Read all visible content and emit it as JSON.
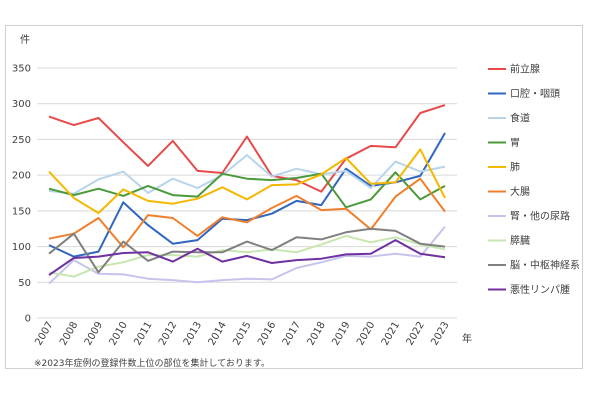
{
  "chart_data": {
    "type": "line",
    "ylabel_unit": "件",
    "xlabel_unit": "年",
    "ylim": [
      0,
      350
    ],
    "yticks": [
      0,
      50,
      100,
      150,
      200,
      250,
      300,
      350
    ],
    "grid": true,
    "legend_position": "right",
    "x": [
      "2007",
      "2008",
      "2009",
      "2010",
      "2011",
      "2012",
      "2013",
      "2014",
      "2015",
      "2016",
      "2017",
      "2018",
      "2019",
      "2020",
      "2021",
      "2022",
      "2023"
    ],
    "series": [
      {
        "name": "前立腺",
        "color": "#e84a4a",
        "values": [
          282,
          270,
          280,
          246,
          213,
          248,
          206,
          203,
          254,
          199,
          193,
          177,
          223,
          241,
          239,
          287,
          298
        ]
      },
      {
        "name": "口腔・咽頭",
        "color": "#2f66c0",
        "values": [
          102,
          86,
          93,
          162,
          130,
          104,
          109,
          139,
          137,
          146,
          164,
          158,
          209,
          185,
          190,
          199,
          259
        ]
      },
      {
        "name": "食道",
        "color": "#b7d4ea",
        "values": [
          178,
          174,
          194,
          205,
          175,
          195,
          182,
          200,
          228,
          198,
          209,
          201,
          206,
          182,
          219,
          205,
          212
        ]
      },
      {
        "name": "胃",
        "color": "#4a9a3a",
        "values": [
          181,
          172,
          181,
          171,
          185,
          172,
          170,
          202,
          195,
          193,
          196,
          202,
          155,
          166,
          204,
          166,
          185
        ]
      },
      {
        "name": "肺",
        "color": "#f5b800",
        "values": [
          205,
          168,
          147,
          180,
          164,
          160,
          167,
          183,
          166,
          186,
          187,
          201,
          224,
          188,
          190,
          236,
          168
        ]
      },
      {
        "name": "大腸",
        "color": "#f07f2c",
        "values": [
          111,
          118,
          140,
          99,
          144,
          140,
          115,
          141,
          134,
          154,
          171,
          151,
          153,
          124,
          170,
          195,
          149
        ]
      },
      {
        "name": "腎・他の尿路",
        "color": "#c6c4ec",
        "values": [
          48,
          81,
          62,
          61,
          55,
          53,
          50,
          53,
          55,
          54,
          70,
          78,
          87,
          86,
          90,
          86,
          128
        ]
      },
      {
        "name": "膵臓",
        "color": "#c8e6b0",
        "values": [
          64,
          58,
          72,
          78,
          88,
          88,
          86,
          95,
          92,
          96,
          92,
          103,
          115,
          106,
          113,
          103,
          96
        ]
      },
      {
        "name": "脳・中枢神経系",
        "color": "#808080",
        "values": [
          90,
          118,
          64,
          107,
          80,
          93,
          92,
          92,
          107,
          95,
          113,
          110,
          120,
          125,
          122,
          104,
          100
        ]
      },
      {
        "name": "悪性リンパ腫",
        "color": "#7030a0",
        "values": [
          60,
          84,
          86,
          91,
          92,
          79,
          97,
          79,
          87,
          77,
          81,
          83,
          89,
          90,
          109,
          90,
          85
        ]
      }
    ]
  },
  "note": "※2023年症例の登録件数上位の部位を集計しております。"
}
